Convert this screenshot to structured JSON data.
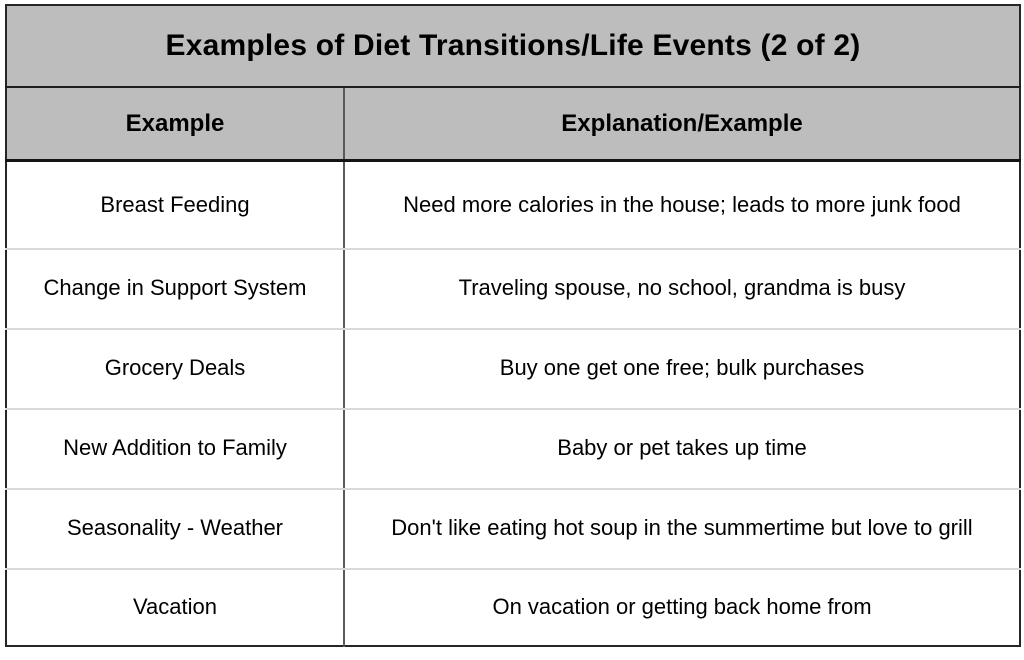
{
  "slide": {
    "title": "Examples of Diet Transitions/Life Events (2 of 2)"
  },
  "table": {
    "columns": [
      "Example",
      "Explanation/Example"
    ],
    "rows": [
      {
        "example": "Breast Feeding",
        "explanation": "Need more calories in the house; leads to more junk food"
      },
      {
        "example": "Change in Support System",
        "explanation": "Traveling spouse, no school, grandma is busy"
      },
      {
        "example": "Grocery Deals",
        "explanation": "Buy one get one free; bulk purchases"
      },
      {
        "example": "New Addition to Family",
        "explanation": "Baby or pet takes up time"
      },
      {
        "example": "Seasonality - Weather",
        "explanation": "Don't like eating hot soup in the summertime but love to grill"
      },
      {
        "example": "Vacation",
        "explanation": "On vacation or getting back home from"
      }
    ]
  },
  "colors": {
    "header_bg": "#bdbdbd",
    "heavy_border": "#1f1f1f",
    "column_divider": "#595959",
    "row_divider": "#d9d9d9",
    "text": "#000000"
  }
}
